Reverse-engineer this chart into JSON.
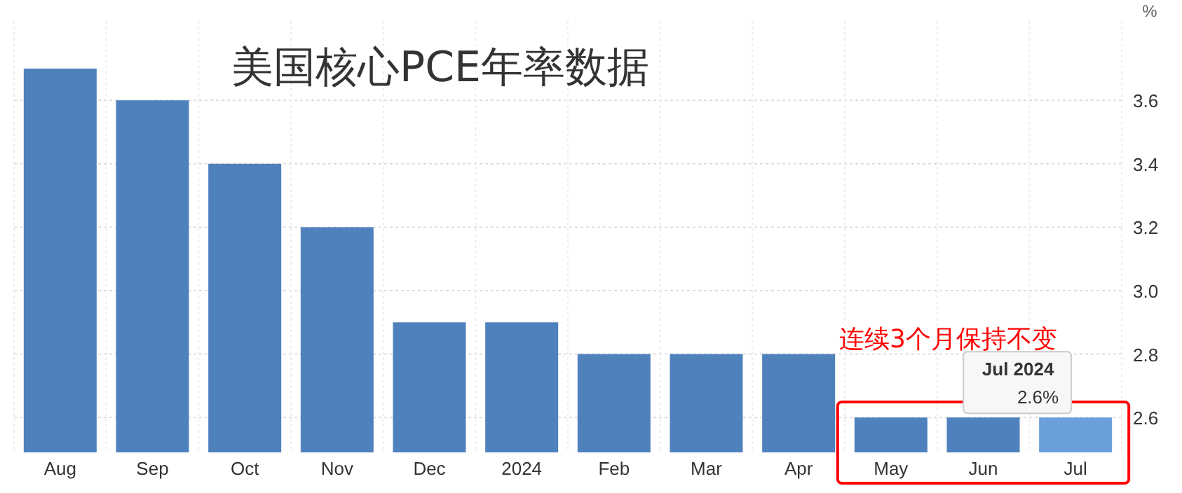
{
  "chart_data": {
    "type": "bar",
    "title": "美国核心PCE年率数据",
    "ylabel": "%",
    "categories": [
      "Aug",
      "Sep",
      "Oct",
      "Nov",
      "Dec",
      "2024",
      "Feb",
      "Mar",
      "Apr",
      "May",
      "Jun",
      "Jul"
    ],
    "values": [
      3.7,
      3.6,
      3.4,
      3.2,
      2.9,
      2.9,
      2.8,
      2.8,
      2.8,
      2.6,
      2.6,
      2.6
    ],
    "colors": [
      "#4f81bd",
      "#4f81bd",
      "#4f81bd",
      "#4f81bd",
      "#4f81bd",
      "#4f81bd",
      "#4f81bd",
      "#4f81bd",
      "#4f81bd",
      "#4f81bd",
      "#4f81bd",
      "#6a9fdc"
    ],
    "ylim": [
      2.49,
      3.85
    ],
    "yticks": [
      {
        "value": 2.6,
        "label": "2.6"
      },
      {
        "value": 2.8,
        "label": "2.8"
      },
      {
        "value": 3.0,
        "label": "3.0"
      },
      {
        "value": 3.2,
        "label": "3.2"
      },
      {
        "value": 3.4,
        "label": "3.4"
      },
      {
        "value": 3.6,
        "label": "3.6"
      }
    ],
    "grid": true,
    "annotations": [
      {
        "text": "Jul 2024",
        "x": "Jul",
        "y": 2.6
      },
      {
        "text": "2.6%",
        "x": "Jul",
        "y": 2.6
      },
      "连续3个月保持不变"
    ]
  }
}
